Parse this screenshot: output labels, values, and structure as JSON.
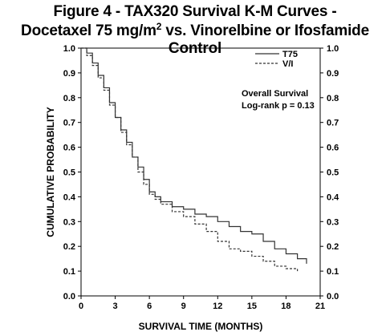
{
  "title_line1": "Figure 4 - TAX320 Survival K-M Curves -",
  "title_line2_before": "Docetaxel 75 mg/m",
  "title_line2_sup": "2",
  "title_line2_after": " vs. Vinorelbine or Ifosfamide Control",
  "annotation": {
    "line1": "Overall Survival",
    "line2": "Log-rank p = 0.13"
  },
  "chart_data": {
    "type": "line",
    "xlabel": "SURVIVAL TIME (MONTHS)",
    "ylabel": "CUMULATIVE PROBABILITY",
    "xlim": [
      0,
      21
    ],
    "ylim": [
      0.0,
      1.0
    ],
    "xticks": [
      "0",
      "3",
      "6",
      "9",
      "12",
      "15",
      "18",
      "21"
    ],
    "yticks": [
      "0.0",
      "0.1",
      "0.2",
      "0.3",
      "0.4",
      "0.5",
      "0.6",
      "0.7",
      "0.8",
      "0.9",
      "1.0"
    ],
    "legend_position": "top-right",
    "series": [
      {
        "name": "T75",
        "line_style": "solid",
        "x": [
          0,
          0.5,
          1.0,
          1.5,
          2.0,
          2.5,
          3.0,
          3.5,
          4.0,
          4.5,
          5.0,
          5.5,
          6.0,
          6.5,
          7.0,
          8.0,
          9.0,
          10.0,
          11.0,
          12.0,
          13.0,
          14.0,
          15.0,
          16.0,
          17.0,
          18.0,
          19.0,
          19.8
        ],
        "y": [
          1.0,
          0.98,
          0.94,
          0.89,
          0.84,
          0.78,
          0.72,
          0.67,
          0.62,
          0.56,
          0.52,
          0.47,
          0.42,
          0.4,
          0.38,
          0.36,
          0.35,
          0.33,
          0.32,
          0.3,
          0.28,
          0.26,
          0.25,
          0.22,
          0.19,
          0.17,
          0.15,
          0.13
        ]
      },
      {
        "name": "V/I",
        "line_style": "dashed",
        "x": [
          0,
          0.5,
          1.0,
          1.5,
          2.0,
          2.5,
          3.0,
          3.5,
          4.0,
          4.5,
          5.0,
          5.5,
          6.0,
          6.5,
          7.0,
          8.0,
          9.0,
          10.0,
          11.0,
          12.0,
          13.0,
          14.0,
          15.0,
          16.0,
          17.0,
          18.0,
          19.0
        ],
        "y": [
          1.0,
          0.97,
          0.93,
          0.88,
          0.83,
          0.77,
          0.72,
          0.66,
          0.61,
          0.56,
          0.5,
          0.45,
          0.41,
          0.39,
          0.37,
          0.34,
          0.32,
          0.29,
          0.26,
          0.22,
          0.19,
          0.18,
          0.16,
          0.14,
          0.12,
          0.11,
          0.1
        ]
      }
    ]
  }
}
